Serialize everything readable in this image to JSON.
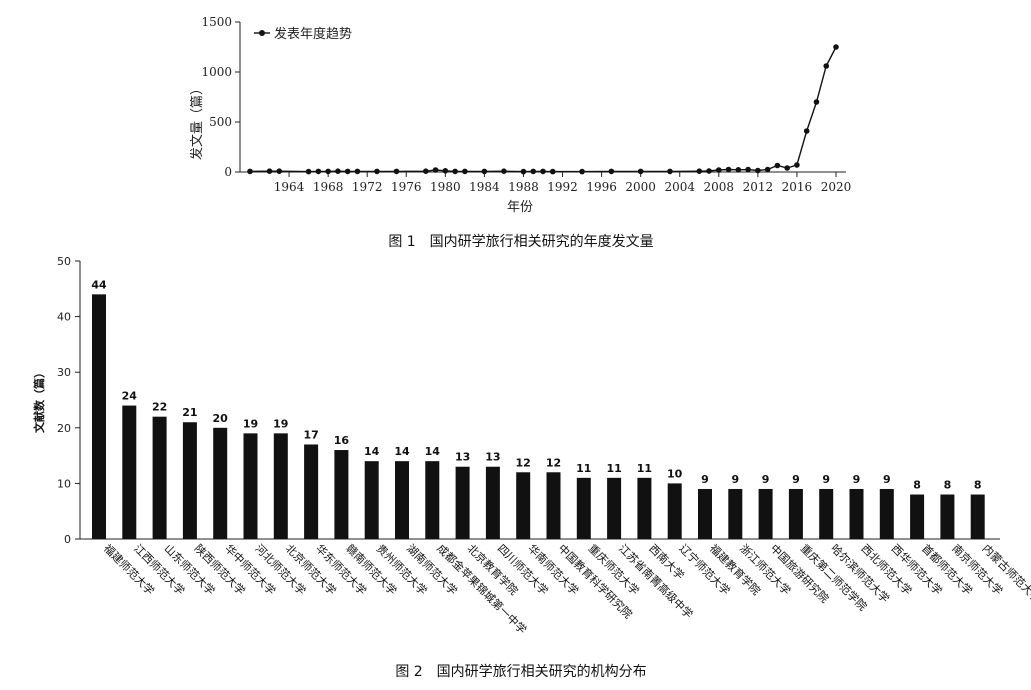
{
  "chart_data": [
    {
      "type": "line",
      "title": "",
      "xlabel": "年份",
      "ylabel": "发文量（篇）",
      "ylim": [
        0,
        1500
      ],
      "xlim": [
        1960,
        2020
      ],
      "y_ticks": [
        "0",
        "500",
        "1000",
        "1500"
      ],
      "x_ticks": [
        "1964",
        "1968",
        "1972",
        "1976",
        "1980",
        "1984",
        "1988",
        "1992",
        "1996",
        "2000",
        "2004",
        "2008",
        "2012",
        "2016",
        "2020"
      ],
      "grid": false,
      "legend": "top-left",
      "series": [
        {
          "name": "发表年度趋势",
          "x": [
            1960,
            1962,
            1963,
            1966,
            1967,
            1968,
            1969,
            1970,
            1971,
            1973,
            1975,
            1978,
            1979,
            1980,
            1981,
            1982,
            1984,
            1986,
            1988,
            1989,
            1990,
            1991,
            1994,
            1997,
            2000,
            2003,
            2006,
            2007,
            2008,
            2009,
            2010,
            2011,
            2012,
            2013,
            2014,
            2015,
            2016,
            2017,
            2018,
            2019,
            2020
          ],
          "y": [
            6,
            8,
            8,
            4,
            6,
            6,
            8,
            6,
            6,
            6,
            6,
            8,
            20,
            12,
            6,
            6,
            6,
            8,
            4,
            6,
            6,
            4,
            4,
            6,
            6,
            6,
            8,
            10,
            20,
            25,
            22,
            24,
            15,
            25,
            65,
            40,
            70,
            410,
            700,
            1060,
            1250
          ]
        }
      ],
      "caption": "图 1　国内研学旅行相关研究的年度发文量"
    },
    {
      "type": "bar",
      "title": "",
      "xlabel": "",
      "ylabel": "文献数（篇）",
      "ylim": [
        0,
        50
      ],
      "y_ticks": [
        "0",
        "10",
        "20",
        "30",
        "40",
        "50"
      ],
      "grid": false,
      "categories": [
        "福建师范大学",
        "江西师范大学",
        "山东师范大学",
        "陕西师范大学",
        "华中师范大学",
        "河北师范大学",
        "北京师范大学",
        "华东师范大学",
        "赣南师范大学",
        "贵州师范大学",
        "湖南师范大学",
        "成都金苹果锦城第一中学",
        "北京教育学院",
        "四川师范大学",
        "华南师范大学",
        "中国教育科学研究院",
        "重庆师范大学",
        "江苏省南菁高级中学",
        "西南大学",
        "辽宁师范大学",
        "福建教育学院",
        "浙江师范大学",
        "中国旅游研究院",
        "重庆第二师范学院",
        "哈尔滨师范大学",
        "西北师范大学",
        "西华师范大学",
        "首都师范大学",
        "南京师范大学",
        "内蒙古师范大学"
      ],
      "values": [
        44,
        24,
        22,
        21,
        20,
        19,
        19,
        17,
        16,
        14,
        14,
        14,
        13,
        13,
        12,
        12,
        11,
        11,
        11,
        10,
        9,
        9,
        9,
        9,
        9,
        9,
        9,
        8,
        8,
        8
      ],
      "data_labels": [
        "44",
        "24",
        "22",
        "21",
        "20",
        "19",
        "19",
        "17",
        "16",
        "14",
        "14",
        "14",
        "13",
        "13",
        "12",
        "12",
        "11",
        "11",
        "11",
        "10",
        "9",
        "9",
        "9",
        "9",
        "9",
        "9",
        "9",
        "8",
        "8",
        "8"
      ],
      "caption": "图 2　国内研学旅行相关研究的机构分布"
    }
  ]
}
